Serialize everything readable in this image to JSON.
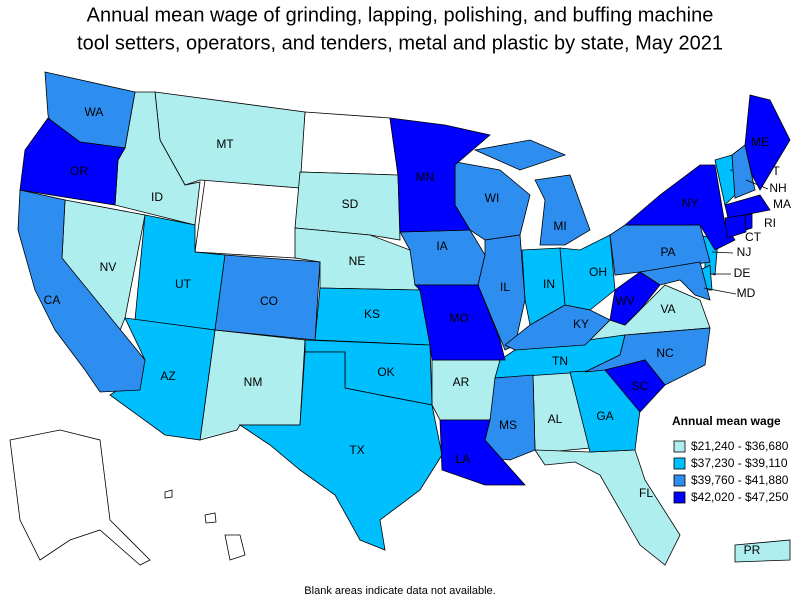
{
  "title": "Annual mean wage of grinding, lapping, polishing, and buffing machine tool setters, operators, and tenders, metal and plastic by state, May 2021",
  "legend": {
    "title": "Annual mean wage",
    "items": [
      {
        "label": "$21,240 - $36,680",
        "color": "#afeeee",
        "states": [
          "MT",
          "ID",
          "NV",
          "SD",
          "NE",
          "NM",
          "AR",
          "AL",
          "FL",
          "VA",
          "PR"
        ]
      },
      {
        "label": "$37,230 - $39,110",
        "color": "#00bfff",
        "states": [
          "UT",
          "AZ",
          "KS",
          "OK",
          "TX",
          "IN",
          "OH",
          "TN",
          "GA",
          "NJ",
          "DE",
          "VT"
        ]
      },
      {
        "label": "$39,760 - $41,880",
        "color": "#2e8ef0",
        "states": [
          "WA",
          "CA",
          "CO",
          "IA",
          "WI",
          "IL",
          "MI",
          "MS",
          "KY",
          "NC",
          "PA",
          "MD",
          "NH"
        ]
      },
      {
        "label": "$42,020 - $47,250",
        "color": "#0000ff",
        "states": [
          "OR",
          "MN",
          "MO",
          "LA",
          "WV",
          "SC",
          "NY",
          "ME",
          "MA",
          "CT",
          "RI"
        ]
      }
    ]
  },
  "footnote": "Blank areas indicate data not available."
}
